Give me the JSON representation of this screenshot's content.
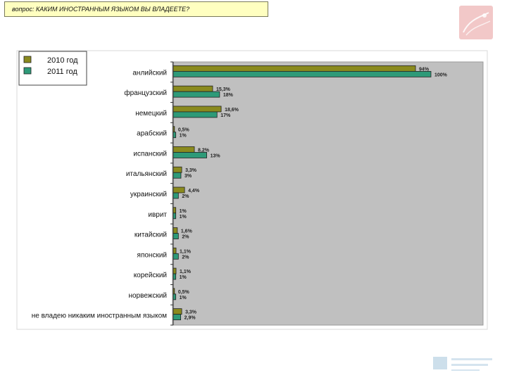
{
  "header": {
    "question": "вопрос: КАКИМ ИНОСТРАННЫМ ЯЗЫКОМ ВЫ ВЛАДЕЕТЕ?"
  },
  "colors": {
    "series_2010": "#8a8a1e",
    "series_2011": "#2e9a78",
    "plot_bg": "#c0c0c0",
    "question_bg": "#ffffc0",
    "logo_bg": "#f2c8c8"
  },
  "icons": {
    "logo": "logo-badge-icon",
    "watermark": "watermark-logo-icon"
  },
  "chart_data": {
    "type": "bar",
    "orientation": "horizontal",
    "title": "",
    "xlabel": "",
    "ylabel": "",
    "xlim": [
      0,
      100
    ],
    "grid": false,
    "legend_position": "top-left",
    "categories": [
      "анлийский",
      "французский",
      "немецкий",
      "арабский",
      "испанский",
      "итальянский",
      "украинский",
      "иврит",
      "китайский",
      "японский",
      "корейский",
      "норвежский",
      "не владею никаким иностранным языком"
    ],
    "series": [
      {
        "name": "2010 год",
        "values": [
          94,
          15.3,
          18.6,
          0.5,
          8.2,
          3.3,
          4.4,
          1,
          1.6,
          1.1,
          1.1,
          0.5,
          3.3
        ],
        "labels": [
          "94%",
          "15,3%",
          "18,6%",
          "0,5%",
          "8,2%",
          "3,3%",
          "4,4%",
          "1%",
          "1,6%",
          "1,1%",
          "1,1%",
          "0,5%",
          "3,3%"
        ]
      },
      {
        "name": "2011 год",
        "values": [
          100,
          18,
          17,
          1,
          13,
          3,
          2,
          1,
          2,
          2,
          1,
          1,
          2.9
        ],
        "labels": [
          "100%",
          "18%",
          "17%",
          "1%",
          "13%",
          "3%",
          "2%",
          "1%",
          "2%",
          "2%",
          "1%",
          "1%",
          "2,9%"
        ]
      }
    ]
  }
}
